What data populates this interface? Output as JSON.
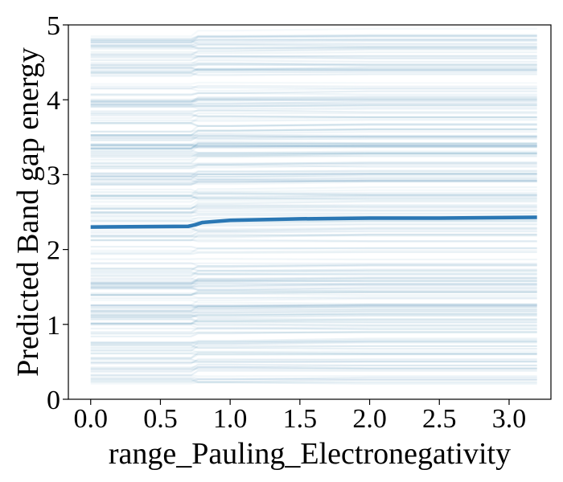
{
  "chart_data": {
    "type": "line",
    "title": "",
    "xlabel": "range_Pauling_Electronegativity",
    "ylabel": "Predicted Band gap energy",
    "xlim": [
      -0.16,
      3.3
    ],
    "ylim": [
      0,
      5
    ],
    "xticks": [
      "0.0",
      "0.5",
      "1.0",
      "1.5",
      "2.0",
      "2.5",
      "3.0"
    ],
    "xtick_values": [
      0.0,
      0.5,
      1.0,
      1.5,
      2.0,
      2.5,
      3.0
    ],
    "yticks": [
      "0",
      "1",
      "2",
      "3",
      "4",
      "5"
    ],
    "ytick_values": [
      0,
      1,
      2,
      3,
      4,
      5
    ],
    "grid": false,
    "legend": "none",
    "colors": {
      "average": "#2a77b4",
      "ice": "#3b80ad"
    },
    "average_line": {
      "x": [
        0.0,
        0.7,
        0.75,
        0.8,
        1.0,
        1.5,
        2.0,
        2.5,
        3.2
      ],
      "y": [
        2.3,
        2.31,
        2.33,
        2.36,
        2.39,
        2.41,
        2.42,
        2.42,
        2.43
      ]
    },
    "ice_curves": {
      "x_range": [
        0.0,
        3.2
      ],
      "y_range": [
        0.2,
        4.9
      ],
      "step_x": 0.75,
      "count": 260
    }
  }
}
